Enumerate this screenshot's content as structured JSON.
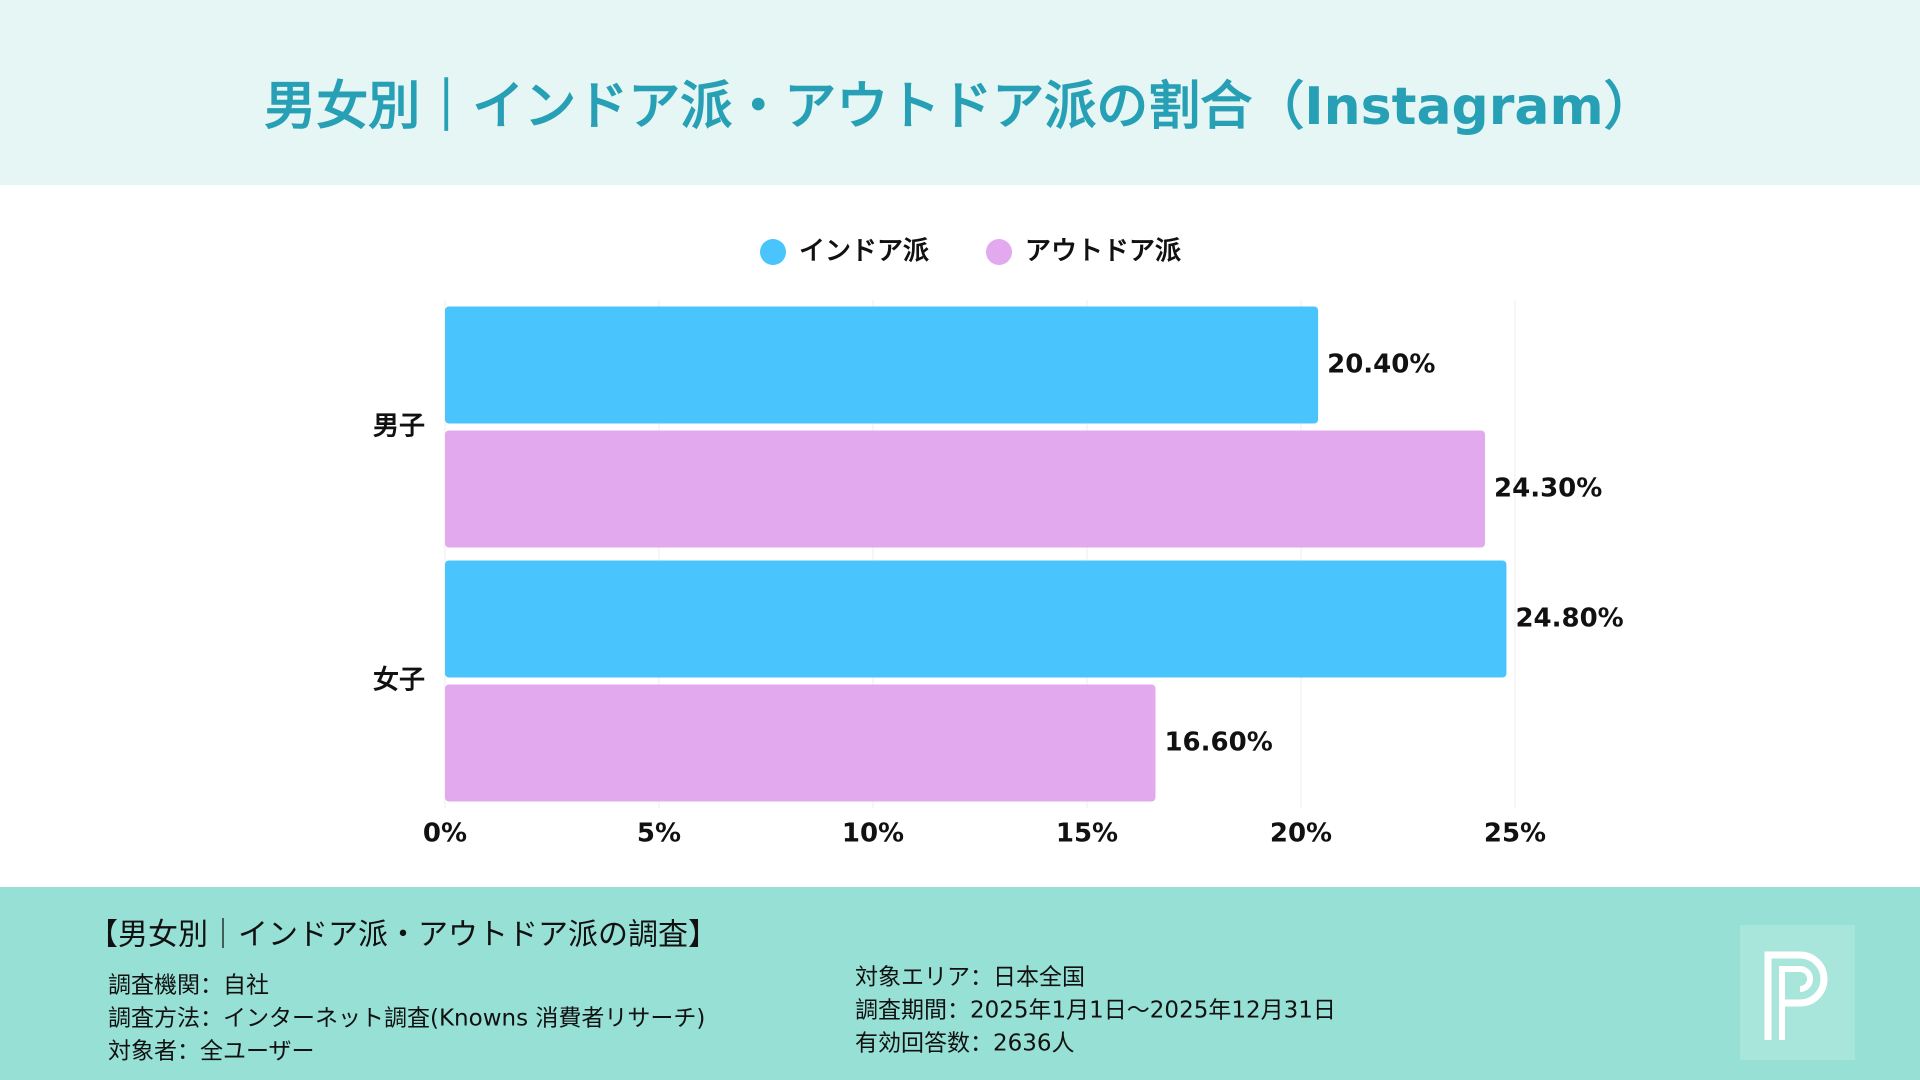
{
  "chart_data": {
    "type": "hbar",
    "title": "男女別｜インドア派・アウトドア派の割合（Instagram）",
    "categories": [
      "男子",
      "女子"
    ],
    "series": [
      {
        "name": "インドア派",
        "color": "#4ac4fc",
        "values": [
          20.4,
          24.8
        ],
        "value_labels": [
          "20.40%",
          "24.80%"
        ]
      },
      {
        "name": "アウトドア派",
        "color": "#e2a9ef",
        "values": [
          24.3,
          16.6
        ],
        "value_labels": [
          "24.30%",
          "16.60%"
        ]
      }
    ],
    "xlim": [
      0,
      25
    ],
    "xticks": [
      {
        "value": 0,
        "label": "0%"
      },
      {
        "value": 5,
        "label": "5%"
      },
      {
        "value": 10,
        "label": "10%"
      },
      {
        "value": 15,
        "label": "15%"
      },
      {
        "value": 20,
        "label": "20%"
      },
      {
        "value": 25,
        "label": "25%"
      }
    ],
    "grid": true,
    "legend": "top"
  },
  "footer": {
    "title": "【男女別｜インドア派・アウトドア派の調査】",
    "left": [
      "調査機関：自社",
      "調査方法：インターネット調査(Knowns 消費者リサーチ)",
      "対象者：全ユーザー"
    ],
    "right": [
      "対象エリア：日本全国",
      "調査期間：2025年1月1日〜2025年12月31日",
      "有効回答数：2636人"
    ]
  }
}
